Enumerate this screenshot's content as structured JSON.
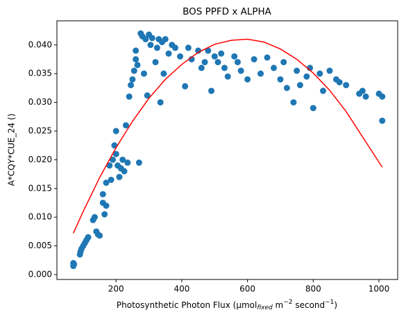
{
  "chart_data": {
    "type": "scatter",
    "title": "BOS PPFD x ALPHA",
    "xlabel": [
      "Photosynthetic Photon Flux (μmol",
      "fixed",
      " m",
      "−2",
      " second",
      "−1",
      ")"
    ],
    "ylabel": "A*CQY*CUE_24 ()",
    "xlim": [
      20,
      1057
    ],
    "ylim": [
      -0.00085,
      0.0442
    ],
    "xticks": [
      200,
      400,
      600,
      800,
      1000
    ],
    "yticks": [
      {
        "value": 0,
        "label": "0.000"
      },
      {
        "value": 0.005,
        "label": "0.005"
      },
      {
        "value": 0.01,
        "label": "0.010"
      },
      {
        "value": 0.015,
        "label": "0.015"
      },
      {
        "value": 0.02,
        "label": "0.020"
      },
      {
        "value": 0.025,
        "label": "0.025"
      },
      {
        "value": 0.03,
        "label": "0.030"
      },
      {
        "value": 0.035,
        "label": "0.035"
      },
      {
        "value": 0.04,
        "label": "0.040"
      }
    ],
    "grid": false,
    "series": [
      {
        "type": "scatter",
        "color": "#1f77b4",
        "x": [
          70,
          70,
          72,
          90,
          92,
          95,
          100,
          105,
          110,
          115,
          130,
          135,
          140,
          145,
          150,
          160,
          160,
          165,
          170,
          170,
          180,
          185,
          190,
          195,
          200,
          200,
          205,
          210,
          215,
          220,
          225,
          230,
          235,
          240,
          245,
          250,
          255,
          260,
          260,
          265,
          270,
          275,
          280,
          285,
          290,
          295,
          300,
          305,
          310,
          320,
          325,
          330,
          335,
          340,
          345,
          350,
          360,
          370,
          380,
          395,
          410,
          420,
          430,
          450,
          460,
          470,
          480,
          490,
          500,
          510,
          520,
          530,
          540,
          560,
          570,
          580,
          600,
          620,
          640,
          660,
          680,
          700,
          710,
          720,
          740,
          750,
          760,
          780,
          790,
          800,
          820,
          830,
          850,
          870,
          880,
          900,
          940,
          950,
          960,
          1000,
          1010,
          1010
        ],
        "values": [
          0.0015,
          0.002,
          0.0018,
          0.0035,
          0.004,
          0.0045,
          0.005,
          0.0055,
          0.006,
          0.0065,
          0.0095,
          0.01,
          0.0075,
          0.007,
          0.0068,
          0.014,
          0.0125,
          0.0105,
          0.012,
          0.016,
          0.019,
          0.0165,
          0.02,
          0.0225,
          0.021,
          0.025,
          0.019,
          0.017,
          0.0185,
          0.02,
          0.018,
          0.026,
          0.0195,
          0.031,
          0.033,
          0.034,
          0.0355,
          0.0375,
          0.039,
          0.0365,
          0.0195,
          0.042,
          0.0415,
          0.035,
          0.041,
          0.0312,
          0.0418,
          0.04,
          0.0412,
          0.037,
          0.0395,
          0.041,
          0.03,
          0.0405,
          0.035,
          0.041,
          0.0385,
          0.04,
          0.0395,
          0.038,
          0.0328,
          0.0395,
          0.0375,
          0.039,
          0.036,
          0.037,
          0.039,
          0.032,
          0.038,
          0.037,
          0.0385,
          0.036,
          0.0345,
          0.038,
          0.037,
          0.0355,
          0.034,
          0.0375,
          0.035,
          0.0378,
          0.036,
          0.034,
          0.037,
          0.0325,
          0.03,
          0.0355,
          0.033,
          0.0345,
          0.036,
          0.029,
          0.035,
          0.032,
          0.0355,
          0.034,
          0.0335,
          0.033,
          0.0315,
          0.032,
          0.031,
          0.0315,
          0.031,
          0.0268
        ]
      },
      {
        "type": "line",
        "color": "red",
        "x": [
          70,
          100,
          150,
          200,
          250,
          300,
          350,
          400,
          450,
          500,
          550,
          600,
          650,
          700,
          750,
          800,
          850,
          900,
          950,
          1010
        ],
        "values": [
          0.0072,
          0.011,
          0.0169,
          0.0221,
          0.0267,
          0.0307,
          0.034,
          0.0366,
          0.0387,
          0.0401,
          0.0408,
          0.041,
          0.0405,
          0.0393,
          0.0375,
          0.0351,
          0.0321,
          0.0284,
          0.024,
          0.0187
        ]
      }
    ]
  }
}
